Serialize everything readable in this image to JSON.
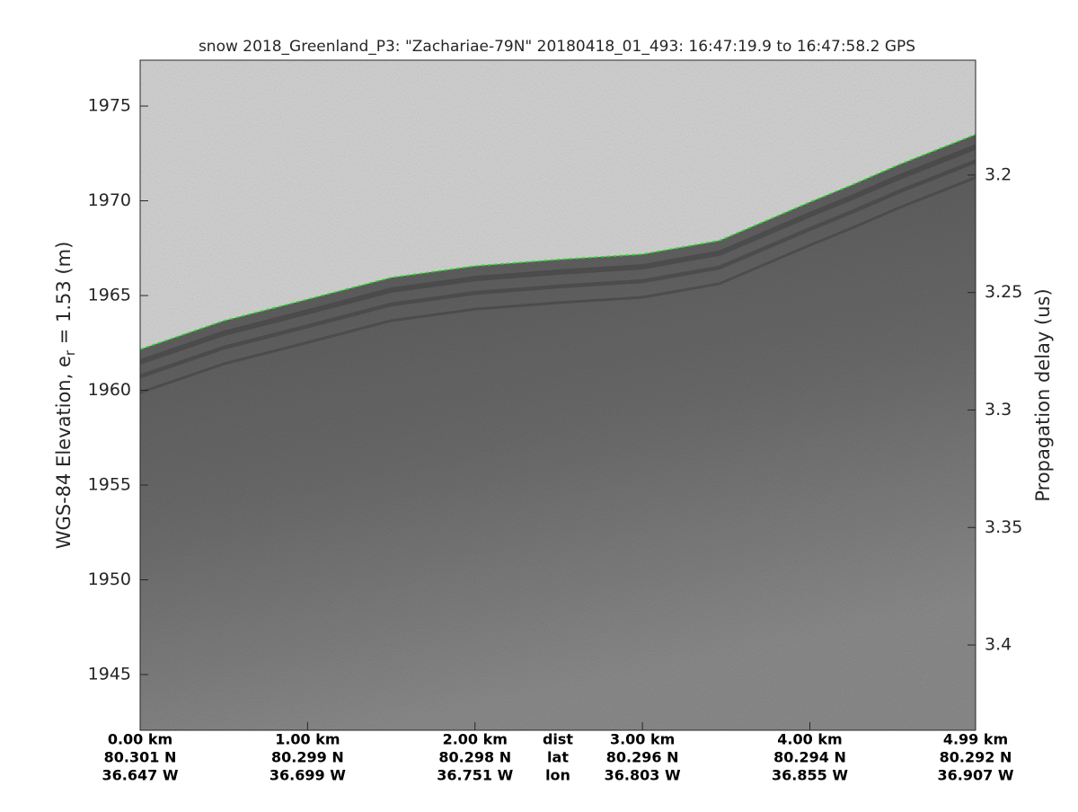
{
  "chart_data": {
    "type": "echogram",
    "title": "snow 2018_Greenland_P3: \"Zachariae-79N\"  20180418_01_493: 16:47:19.9 to 16:47:58.2 GPS",
    "ylabel": {
      "before": "WGS-84 Elevation, e",
      "subscript": "r",
      "after": " = 1.53 (m)"
    },
    "y2label": "Propagation delay (us)",
    "x": [
      0,
      0.5,
      1.0,
      1.5,
      2.0,
      2.5,
      3.0,
      3.46,
      4.0,
      4.25,
      4.53,
      4.99
    ],
    "series": [
      {
        "name": "Surface",
        "color": "#22dd22",
        "values": [
          1962.16,
          1963.67,
          1964.8,
          1965.95,
          1966.56,
          1966.9,
          1967.18,
          1967.9,
          1969.93,
          1970.83,
          1971.9,
          1973.5
        ]
      }
    ],
    "xlim": [
      0,
      4.99
    ],
    "xticks": [
      {
        "value": 0,
        "label": "0.00 km"
      },
      {
        "value": 1,
        "label": "1.00 km"
      },
      {
        "value": 2,
        "label": "2.00 km"
      },
      {
        "value": 3,
        "label": "3.00 km"
      },
      {
        "value": 4,
        "label": "4.00 km"
      },
      {
        "value": 4.99,
        "label": "4.99 km"
      }
    ],
    "xtick_lat": [
      "80.301 N",
      "80.299 N",
      "80.298 N",
      "80.296 N",
      "80.294 N",
      "80.292 N"
    ],
    "xtick_lon": [
      "36.647 W",
      "36.699 W",
      "36.751 W",
      "36.803 W",
      "36.855 W",
      "36.907 W"
    ],
    "xtick_row_names": [
      "dist",
      "lat",
      "lon"
    ],
    "ylim": [
      1942.06,
      1977.42
    ],
    "yticks": [
      1945,
      1950,
      1955,
      1960,
      1965,
      1970,
      1975
    ],
    "y2lim": [
      3.4363,
      3.1511
    ],
    "y2ticks": [
      3.2,
      3.25,
      3.3,
      3.35,
      3.4
    ]
  }
}
